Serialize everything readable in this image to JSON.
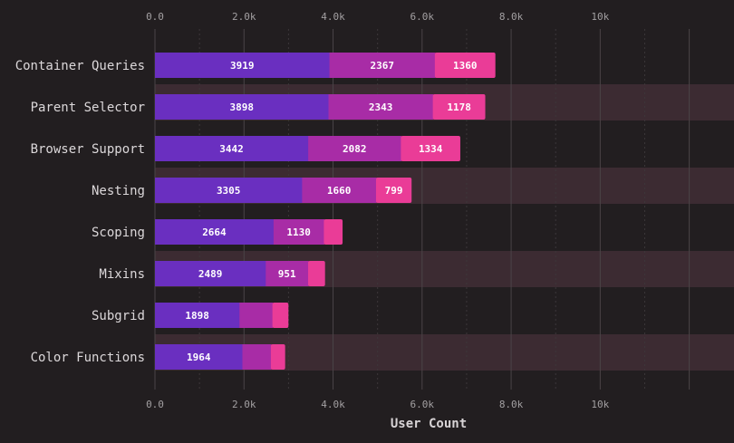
{
  "chart_data": {
    "type": "bar",
    "orientation": "horizontal",
    "stacked": true,
    "categories": [
      "Container Queries",
      "Parent Selector",
      "Browser Support",
      "Nesting",
      "Scoping",
      "Mixins",
      "Subgrid",
      "Color Functions"
    ],
    "series": [
      {
        "values": [
          3919,
          3898,
          3442,
          3305,
          2664,
          2489,
          1898,
          1964
        ],
        "color": "#6a2fc0"
      },
      {
        "values": [
          2367,
          2343,
          2082,
          1660,
          1130,
          951,
          740,
          640
        ],
        "color": "#a82ca6"
      },
      {
        "values": [
          1360,
          1178,
          1334,
          799,
          420,
          380,
          360,
          320
        ],
        "color": "#ea3c97"
      }
    ],
    "segment_labels": [
      [
        "3919",
        "2367",
        "1360"
      ],
      [
        "3898",
        "2343",
        "1178"
      ],
      [
        "3442",
        "2082",
        "1334"
      ],
      [
        "3305",
        "1660",
        "799"
      ],
      [
        "2664",
        "1130",
        ""
      ],
      [
        "2489",
        "951",
        ""
      ],
      [
        "1898",
        "",
        ""
      ],
      [
        "1964",
        "",
        ""
      ]
    ],
    "x_ticks": [
      {
        "value": 0,
        "label": "0.0"
      },
      {
        "value": 2000,
        "label": "2.0k"
      },
      {
        "value": 4000,
        "label": "4.0k"
      },
      {
        "value": 6000,
        "label": "6.0k"
      },
      {
        "value": 8000,
        "label": "8.0k"
      },
      {
        "value": 10000,
        "label": "10k"
      }
    ],
    "xlim": [
      0,
      12700
    ],
    "xlabel": "User Count",
    "grid": true,
    "band_color": "#3c2b32",
    "background": "#221e20"
  }
}
